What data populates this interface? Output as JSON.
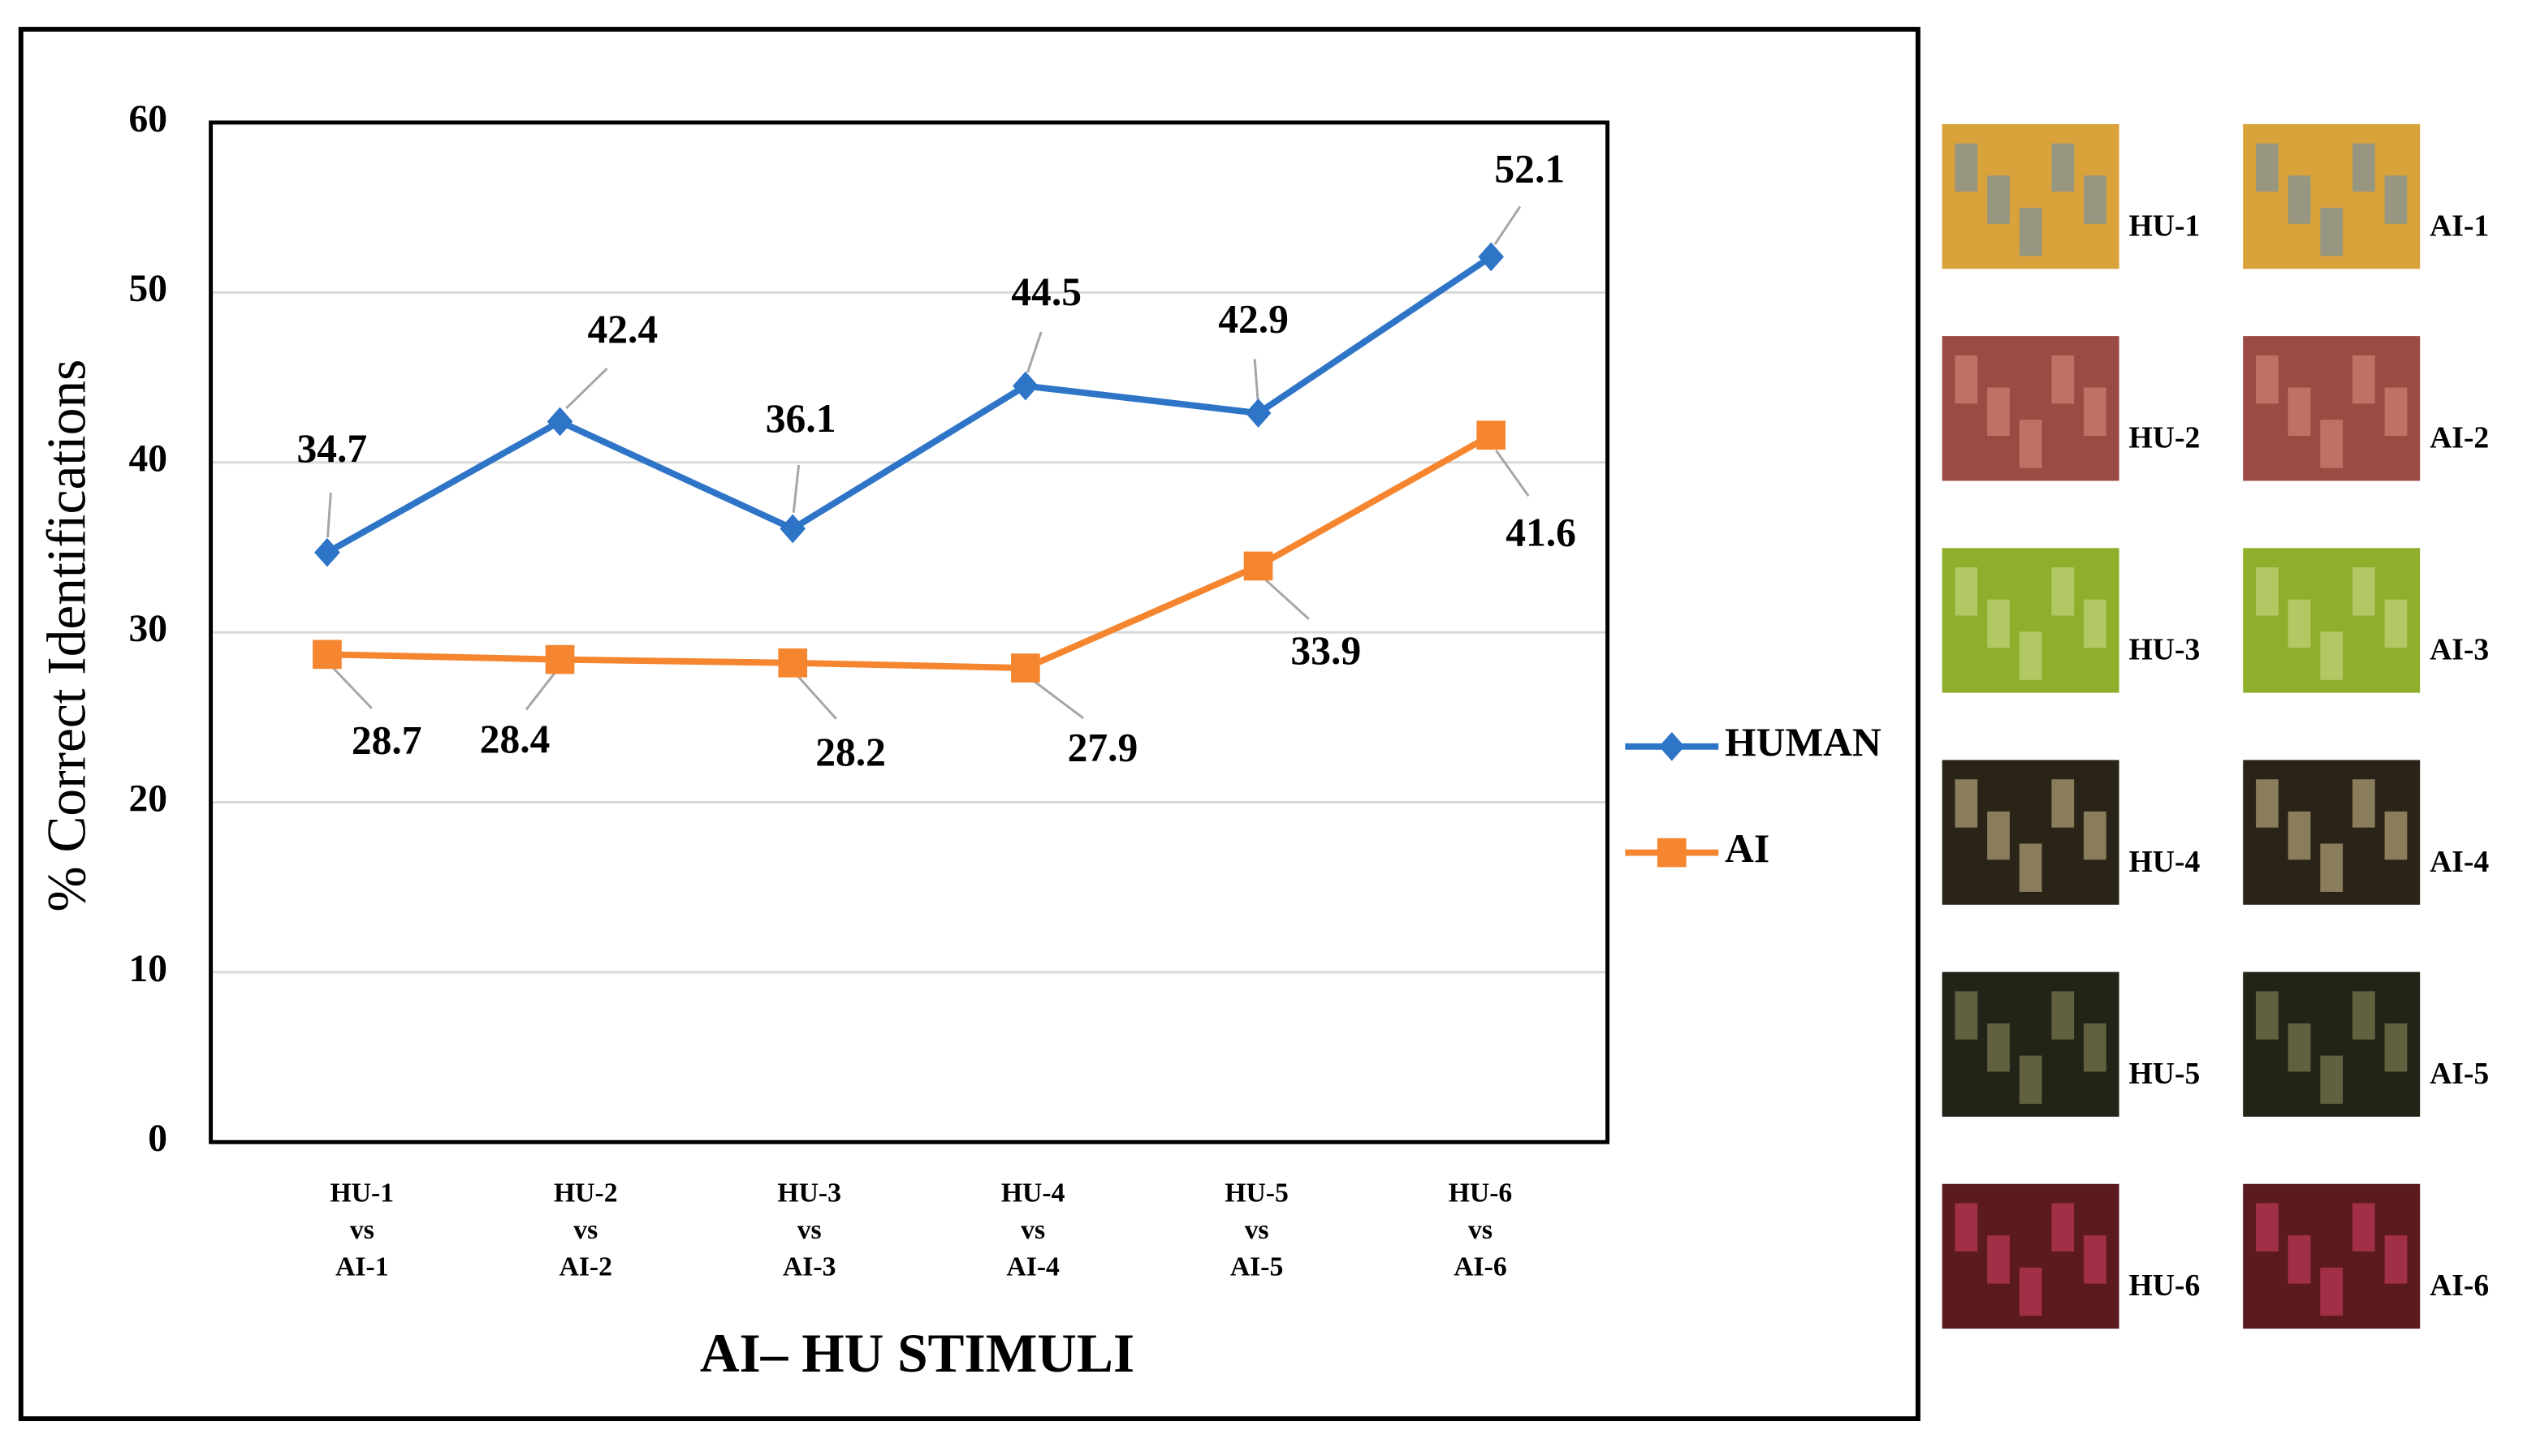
{
  "chart_data": {
    "type": "line",
    "x_label": "AI– HU STIMULI",
    "y_label": "% Correct Identifications",
    "categories": [
      [
        "HU-1",
        "vs",
        "AI-1"
      ],
      [
        "HU-2",
        "vs",
        "AI-2"
      ],
      [
        "HU-3",
        "vs",
        "AI-3"
      ],
      [
        "HU-4",
        "vs",
        "AI-4"
      ],
      [
        "HU-5",
        "vs",
        "AI-5"
      ],
      [
        "HU-6",
        "vs",
        "AI-6"
      ]
    ],
    "series": [
      {
        "name": "HUMAN",
        "color": "#2e75c8",
        "marker": "diamond",
        "values": [
          34.7,
          42.4,
          36.1,
          44.5,
          42.9,
          52.1
        ]
      },
      {
        "name": "AI",
        "color": "#f5862f",
        "marker": "square",
        "values": [
          28.7,
          28.4,
          28.2,
          27.9,
          33.9,
          41.6
        ]
      }
    ],
    "ylim": [
      0,
      60
    ],
    "yticks": [
      0,
      10,
      20,
      30,
      40,
      50,
      60
    ],
    "grid": true,
    "legend": "right"
  },
  "gallery": {
    "rows": [
      [
        "HU-1",
        "AI-1"
      ],
      [
        "HU-2",
        "AI-2"
      ],
      [
        "HU-3",
        "AI-3"
      ],
      [
        "HU-4",
        "AI-4"
      ],
      [
        "HU-5",
        "AI-5"
      ],
      [
        "HU-6",
        "AI-6"
      ]
    ]
  }
}
